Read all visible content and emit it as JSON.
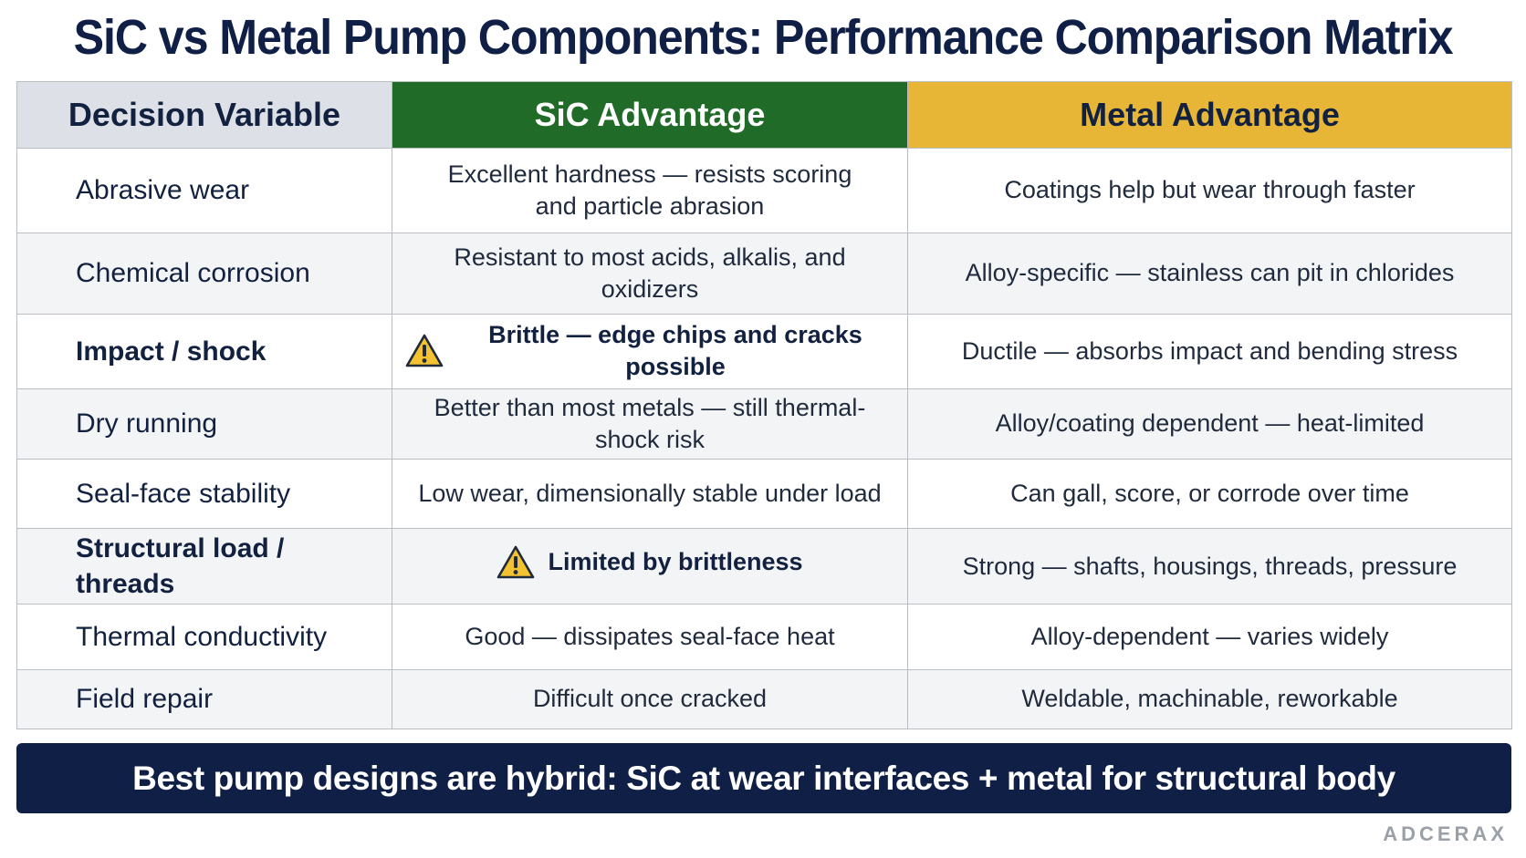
{
  "title": "SiC vs Metal Pump Components: Performance Comparison Matrix",
  "table": {
    "headers": {
      "variable": "Decision Variable",
      "sic": "SiC Advantage",
      "metal": "Metal Advantage"
    },
    "header_colors": {
      "variable": "#dde1e7",
      "sic": "#216b28",
      "metal": "#e8b636"
    },
    "rows": [
      {
        "variable": "Abrasive wear",
        "sic": "Excellent hardness — resists scoring and particle abrasion",
        "metal": "Coatings help but wear through faster"
      },
      {
        "variable": "Chemical corrosion",
        "sic": "Resistant to most acids, alkalis, and oxidizers",
        "metal": "Alloy-specific — stainless can pit in chlorides"
      },
      {
        "variable": "Impact / shock",
        "sic": "Brittle — edge chips and cracks possible",
        "metal": "Ductile — absorbs impact and bending stress",
        "sic_icon": "warning-icon"
      },
      {
        "variable": "Dry running",
        "sic": "Better than most metals — still thermal-shock risk",
        "metal": "Alloy/coating dependent — heat-limited"
      },
      {
        "variable": "Seal-face stability",
        "sic": "Low wear, dimensionally stable under load",
        "metal": "Can gall, score, or corrode over time"
      },
      {
        "variable": "Structural load / threads",
        "sic": "Limited by brittleness",
        "metal": "Strong — shafts, housings, threads, pressure",
        "sic_icon": "warning-icon"
      },
      {
        "variable": "Thermal conductivity",
        "sic": "Good — dissipates seal-face heat",
        "metal": "Alloy-dependent — varies widely"
      },
      {
        "variable": "Field repair",
        "sic": "Difficult once cracked",
        "metal": "Weldable, machinable, reworkable"
      }
    ]
  },
  "banner": "Best pump designs are hybrid: SiC at wear interfaces + metal for structural body",
  "brand": "ADCERAX",
  "colors": {
    "navy": "#0f1f45",
    "warning": "#f2c230"
  }
}
